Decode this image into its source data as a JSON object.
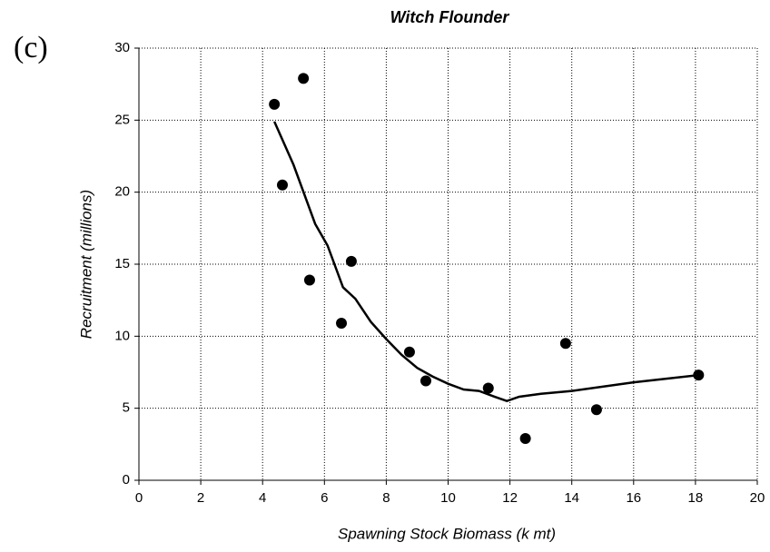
{
  "chart_data": {
    "type": "scatter",
    "title": "Witch Flounder",
    "panel_label": "(c)",
    "x_label": "Spawning Stock Biomass (k mt)",
    "y_label": "Recruitment (millions)",
    "series": [
      {
        "mark": "dot",
        "color": "#000000",
        "x": [
          4.38,
          5.32,
          4.64,
          5.52,
          6.87,
          6.55,
          8.75,
          9.28,
          11.3,
          12.5,
          13.8,
          14.8,
          18.1
        ],
        "values": [
          26.1,
          27.9,
          20.5,
          13.9,
          15.2,
          10.9,
          8.9,
          6.9,
          6.4,
          2.9,
          9.5,
          4.9,
          7.3
        ]
      },
      {
        "mark": "line",
        "color": "#000000",
        "x": [
          4.38,
          5.0,
          5.7,
          6.1,
          6.6,
          7.0,
          7.5,
          8.0,
          8.5,
          9.0,
          9.5,
          10.0,
          10.5,
          11.0,
          11.5,
          11.9,
          12.3,
          13.0,
          14.0,
          16.0,
          18.1
        ],
        "values": [
          24.9,
          21.9,
          17.8,
          16.3,
          13.4,
          12.6,
          11.0,
          9.8,
          8.7,
          7.8,
          7.2,
          6.7,
          6.3,
          6.2,
          5.8,
          5.5,
          5.8,
          6.0,
          6.2,
          6.8,
          7.3
        ]
      }
    ],
    "xlim": [
      0,
      20
    ],
    "xticks": [
      0,
      2,
      4,
      6,
      8,
      10,
      12,
      14,
      16,
      18,
      20
    ],
    "ylim": [
      0,
      30
    ],
    "yticks": [
      0,
      5,
      10,
      15,
      20,
      25,
      30
    ],
    "grid": true
  }
}
